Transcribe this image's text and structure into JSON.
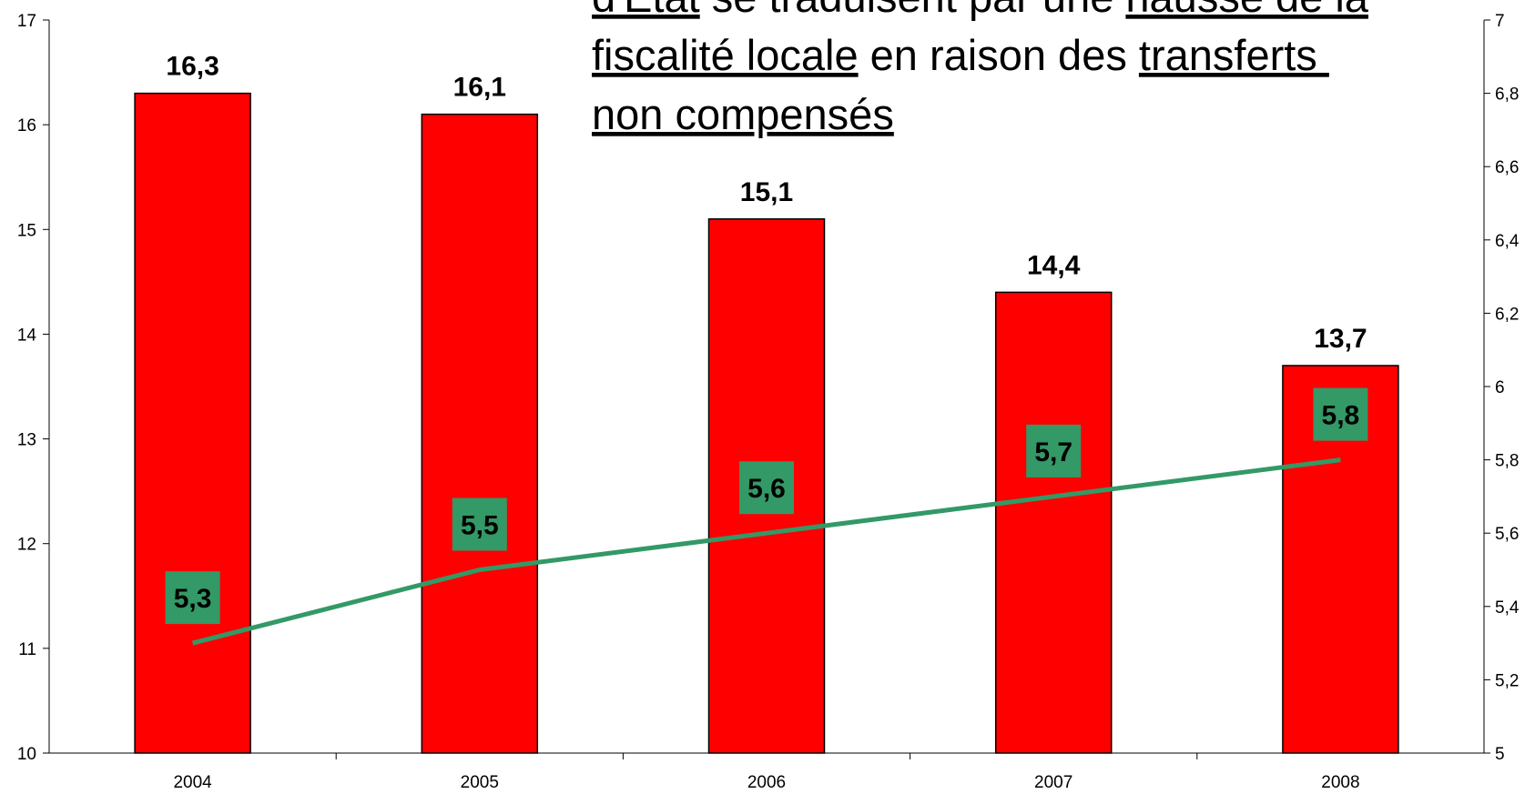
{
  "chart_data": {
    "type": "bar",
    "annotation": [
      [
        {
          "text": "d'Etat",
          "underline": true
        },
        {
          "text": " se traduisent par une ",
          "underline": false
        },
        {
          "text": "hausse de la",
          "underline": true
        }
      ],
      [
        {
          "text": "fiscalité locale",
          "underline": true
        },
        {
          "text": " en raison des ",
          "underline": false
        },
        {
          "text": "transferts ",
          "underline": true
        }
      ],
      [
        {
          "text": "non compensés",
          "underline": true
        }
      ]
    ],
    "categories": [
      "2004",
      "2005",
      "2006",
      "2007",
      "2008"
    ],
    "series": [
      {
        "type": "bar",
        "color": "#ff0000",
        "values": [
          16.3,
          16.1,
          15.1,
          14.4,
          13.7
        ],
        "value_labels": [
          "16,3",
          "16,1",
          "15,1",
          "14,4",
          "13,7"
        ]
      },
      {
        "type": "line",
        "axis": "y2",
        "color": "#339966",
        "values": [
          5.3,
          5.5,
          5.6,
          5.7,
          5.8
        ],
        "value_labels": [
          "5,3",
          "5,5",
          "5,6",
          "5,7",
          "5,8"
        ]
      }
    ],
    "ylim": [
      10,
      17
    ],
    "yticks": [
      10,
      11,
      12,
      13,
      14,
      15,
      16,
      17
    ],
    "y2lim": [
      5,
      7
    ],
    "y2ticks": [
      5,
      {
        "value": 5.2,
        "label": "5,2"
      },
      {
        "value": 5.4,
        "label": "5,4"
      },
      {
        "value": 5.6,
        "label": "5,6"
      },
      {
        "value": 5.8,
        "label": "5,8"
      },
      6,
      {
        "value": 6.2,
        "label": "6,2"
      },
      {
        "value": 6.4,
        "label": "6,4"
      },
      {
        "value": 6.6,
        "label": "6,6"
      },
      {
        "value": 6.8,
        "label": "6,8"
      },
      7
    ]
  }
}
